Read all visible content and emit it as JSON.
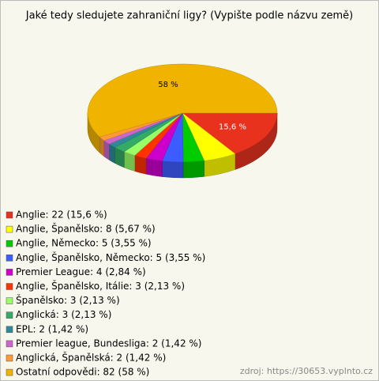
{
  "chart_data": {
    "type": "pie",
    "title": "Jaké tedy sledujete zahraniční ligy? (Vypište podle názvu země)",
    "categories": [
      "Anglie: 22 (15,6 %)",
      "Anglie, Španělsko: 8 (5,67 %)",
      "Anglie, Německo: 5 (3,55 %)",
      "Anglie, Španělsko, Německo: 5 (3,55 %)",
      "Premier League: 4 (2,84 %)",
      "Anglie, Španělsko, Itálie: 3 (2,13 %)",
      "Španělsko: 3 (2,13 %)",
      "Anglická: 3 (2,13 %)",
      "EPL: 2 (1,42 %)",
      "Premier league, Bundesliga: 2 (1,42 %)",
      "Anglická, Španělská: 2 (1,42 %)",
      "Ostatní odpovědi: 82 (58 %)"
    ],
    "values": [
      15.6,
      5.67,
      3.55,
      3.55,
      2.84,
      2.13,
      2.13,
      2.13,
      1.42,
      1.42,
      1.42,
      58
    ],
    "value_labels": [
      "15,6 %",
      null,
      null,
      null,
      null,
      null,
      null,
      null,
      null,
      null,
      null,
      "58 %"
    ],
    "colors": [
      "#e8321e",
      "#ffff00",
      "#00cc00",
      "#3d5cff",
      "#cc00cc",
      "#ff3300",
      "#99ff66",
      "#33aa66",
      "#2e8a99",
      "#cc66cc",
      "#ff9933",
      "#f0b400"
    ],
    "source": "zdroj: https://30653.vyplnto.cz"
  }
}
